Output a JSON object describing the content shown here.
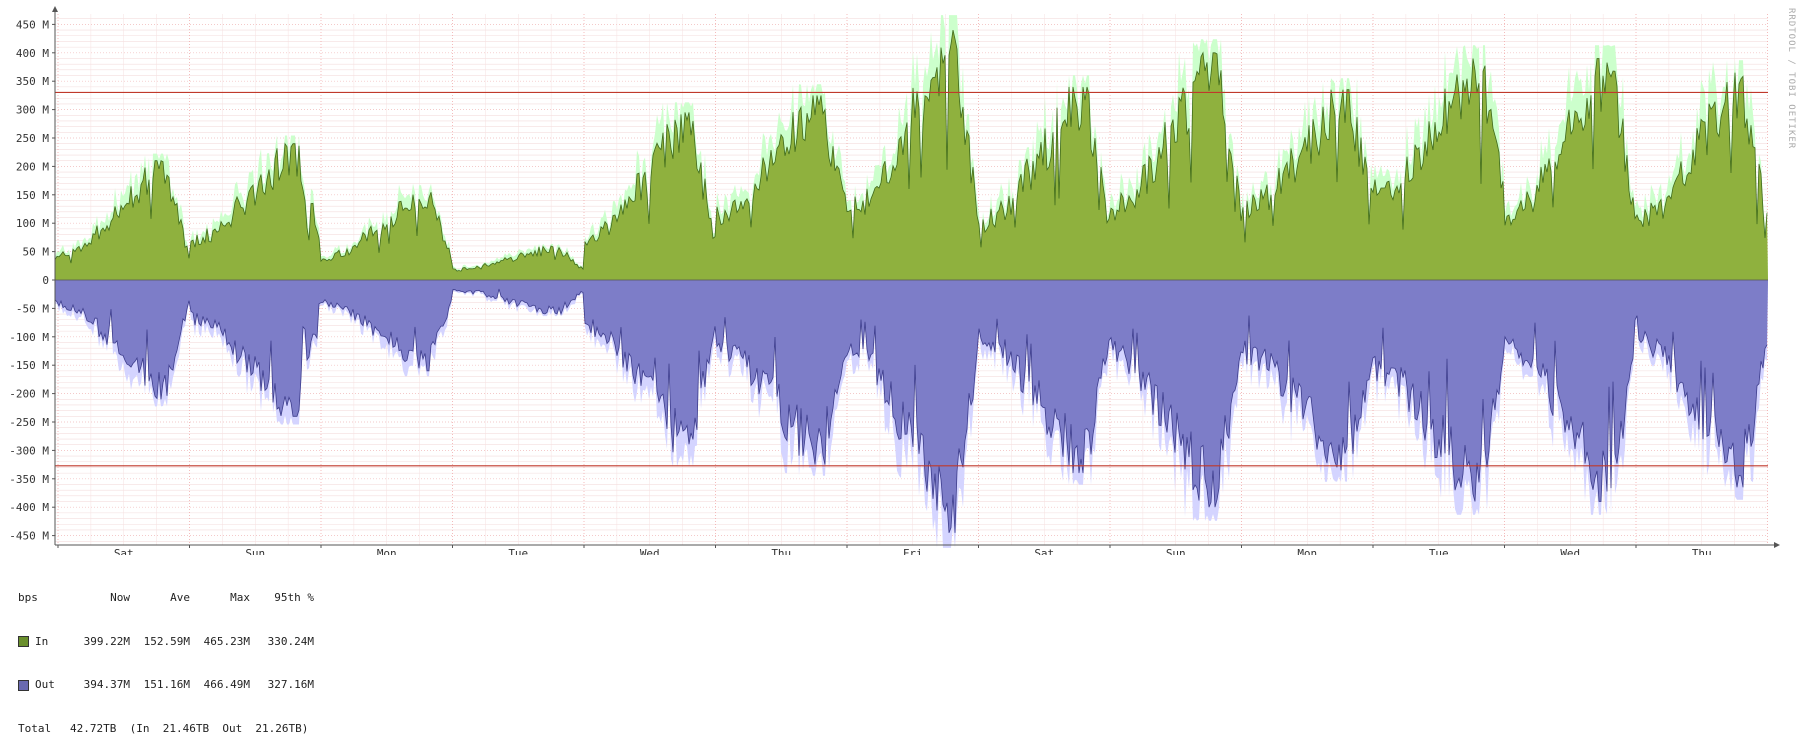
{
  "chart_data": {
    "type": "area",
    "title": "",
    "watermark": "RRDTOOL / TOBI OETIKER",
    "y_unit": "bps",
    "ylim": [
      -465,
      465
    ],
    "y_ticks": [
      -450,
      -400,
      -350,
      -300,
      -250,
      -200,
      -150,
      -100,
      -50,
      0,
      50,
      100,
      150,
      200,
      250,
      300,
      350,
      400,
      450
    ],
    "y_tick_labels": [
      "-450 M",
      "-400 M",
      "-350 M",
      "-300 M",
      "-250 M",
      "-200 M",
      "-150 M",
      "-100 M",
      "-50 M",
      "0",
      "50 M",
      "100 M",
      "150 M",
      "200 M",
      "250 M",
      "300 M",
      "350 M",
      "400 M",
      "450 M"
    ],
    "x_days": [
      "Sat",
      "Sun",
      "Mon",
      "Tue",
      "Wed",
      "Thu",
      "Fri",
      "Sat",
      "Sun",
      "Mon",
      "Tue",
      "Wed",
      "Thu"
    ],
    "grid": true,
    "percentile_lines": [
      330.24,
      -327.16
    ],
    "colors": {
      "in": "#8fb13e",
      "in_line": "#3f6a1c",
      "in_max": "#ccffcc",
      "out": "#7d7dc8",
      "out_line": "#3d3d8c",
      "out_max": "#d4d4ff",
      "percentile": "#c0392b"
    },
    "series": [
      {
        "name": "In",
        "sign": 1,
        "daily_peaks": [
          210,
          240,
          160,
          60,
          295,
          325,
          440,
          340,
          400,
          335,
          390,
          390,
          365
        ],
        "daily_lows": [
          10,
          35,
          15,
          10,
          30,
          80,
          60,
          55,
          75,
          90,
          110,
          60,
          55
        ]
      },
      {
        "name": "Out",
        "sign": -1,
        "daily_peaks": [
          210,
          240,
          160,
          60,
          310,
          325,
          445,
          340,
          400,
          335,
          390,
          390,
          365
        ],
        "daily_lows": [
          10,
          35,
          15,
          10,
          35,
          80,
          60,
          55,
          75,
          90,
          110,
          60,
          55
        ]
      }
    ]
  },
  "legend": {
    "headers": [
      "bps",
      "Now",
      "Ave",
      "Max",
      "95th %"
    ],
    "rows": [
      {
        "label": "In",
        "now": "399.22M",
        "ave": "152.59M",
        "max": "465.23M",
        "p95": "330.24M",
        "color": "#6a8f2c"
      },
      {
        "label": "Out",
        "now": "394.37M",
        "ave": "151.16M",
        "max": "466.49M",
        "p95": "327.16M",
        "color": "#6a6ab0"
      }
    ],
    "total": {
      "label": "Total",
      "text": "42.72TB  (In  21.46TB  Out  21.26TB)"
    }
  }
}
